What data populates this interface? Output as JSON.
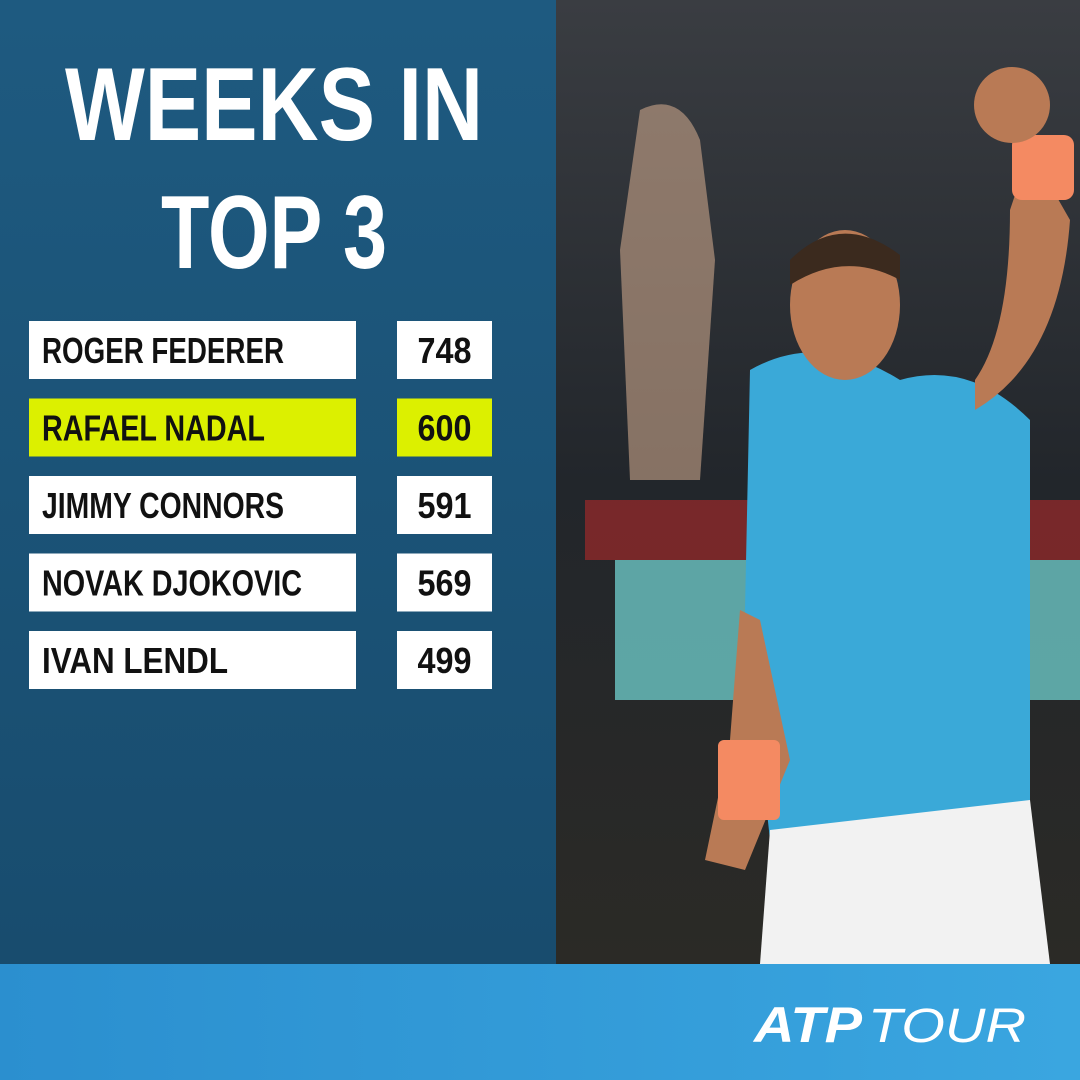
{
  "title_lines": [
    "WEEKS IN",
    "TOP 3"
  ],
  "table": {
    "rows": [
      {
        "name": "ROGER FEDERER",
        "weeks": "748",
        "highlighted": false
      },
      {
        "name": "RAFAEL NADAL",
        "weeks": "600",
        "highlighted": true
      },
      {
        "name": "JIMMY CONNORS",
        "weeks": "591",
        "highlighted": false
      },
      {
        "name": "NOVAK DJOKOVIC",
        "weeks": "569",
        "highlighted": false
      },
      {
        "name": "IVAN LENDL",
        "weeks": "499",
        "highlighted": false
      }
    ]
  },
  "logo": {
    "brand": "ATP",
    "word": "TOUR"
  }
}
